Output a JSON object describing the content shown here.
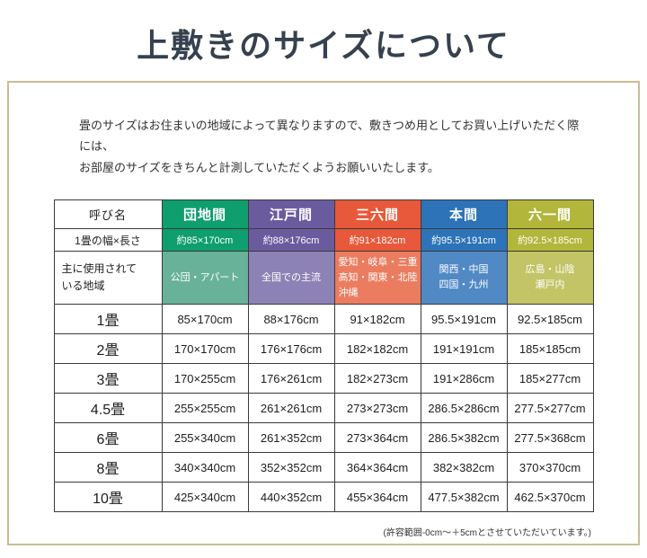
{
  "page": {
    "title": "上敷きのサイズについて",
    "intro": {
      "line1": "畳のサイズはお住まいの地域によって異なりますので、敷きつめ用としてお買い上げいただく際には、",
      "line2": "お部屋のサイズをきちんと計測していただくようお願いいたします。"
    },
    "footnote": "(許容範囲-0cm～＋5cmとさせていただいています。)"
  },
  "table": {
    "name_header": "呼び名",
    "width_row_label": "1畳の幅×長さ",
    "region_row_label": {
      "line1": "主に使用されて",
      "line2": "いる地域"
    },
    "columns": [
      {
        "name": "団地間",
        "header_color": "#0f9e6d",
        "region_color": "#68b29a",
        "width": "約85×170cm",
        "region_lines": {
          "l1": "公団・アパート"
        }
      },
      {
        "name": "江戸間",
        "header_color": "#6a5b9f",
        "region_color": "#8d82b5",
        "width": "約88×176cm",
        "region_lines": {
          "l1": "全国での主流"
        }
      },
      {
        "name": "三六間",
        "header_color": "#e8583a",
        "region_color": "#eb7c5f",
        "width": "約91×182cm",
        "region_lines": {
          "l1": "愛知・岐阜・三重",
          "l2": "高知・関東・北陸",
          "l3": "沖縄"
        }
      },
      {
        "name": "本間",
        "header_color": "#2d73b8",
        "region_color": "#5089c4",
        "width": "約95.5×191cm",
        "region_lines": {
          "l1": "関西・中国",
          "l2": "四国・九州"
        }
      },
      {
        "name": "六一間",
        "header_color": "#b2b63a",
        "region_color": "#c2c466",
        "width": "約92.5×185cm",
        "region_lines": {
          "l1": "広島・山陰",
          "l2": "瀬戸内"
        }
      }
    ],
    "rows": [
      {
        "label": "1畳",
        "values": [
          "85×170cm",
          "88×176cm",
          "91×182cm",
          "95.5×191cm",
          "92.5×185cm"
        ]
      },
      {
        "label": "2畳",
        "values": [
          "170×170cm",
          "176×176cm",
          "182×182cm",
          "191×191cm",
          "185×185cm"
        ]
      },
      {
        "label": "3畳",
        "values": [
          "170×255cm",
          "176×261cm",
          "182×273cm",
          "191×286cm",
          "185×277cm"
        ]
      },
      {
        "label": "4.5畳",
        "values": [
          "255×255cm",
          "261×261cm",
          "273×273cm",
          "286.5×286cm",
          "277.5×277cm"
        ]
      },
      {
        "label": "6畳",
        "values": [
          "255×340cm",
          "261×352cm",
          "273×364cm",
          "286.5×382cm",
          "277.5×368cm"
        ]
      },
      {
        "label": "8畳",
        "values": [
          "340×340cm",
          "352×352cm",
          "364×364cm",
          "382×382cm",
          "370×370cm"
        ]
      },
      {
        "label": "10畳",
        "values": [
          "425×340cm",
          "440×352cm",
          "455×364cm",
          "477.5×382cm",
          "462.5×370cm"
        ]
      }
    ]
  }
}
